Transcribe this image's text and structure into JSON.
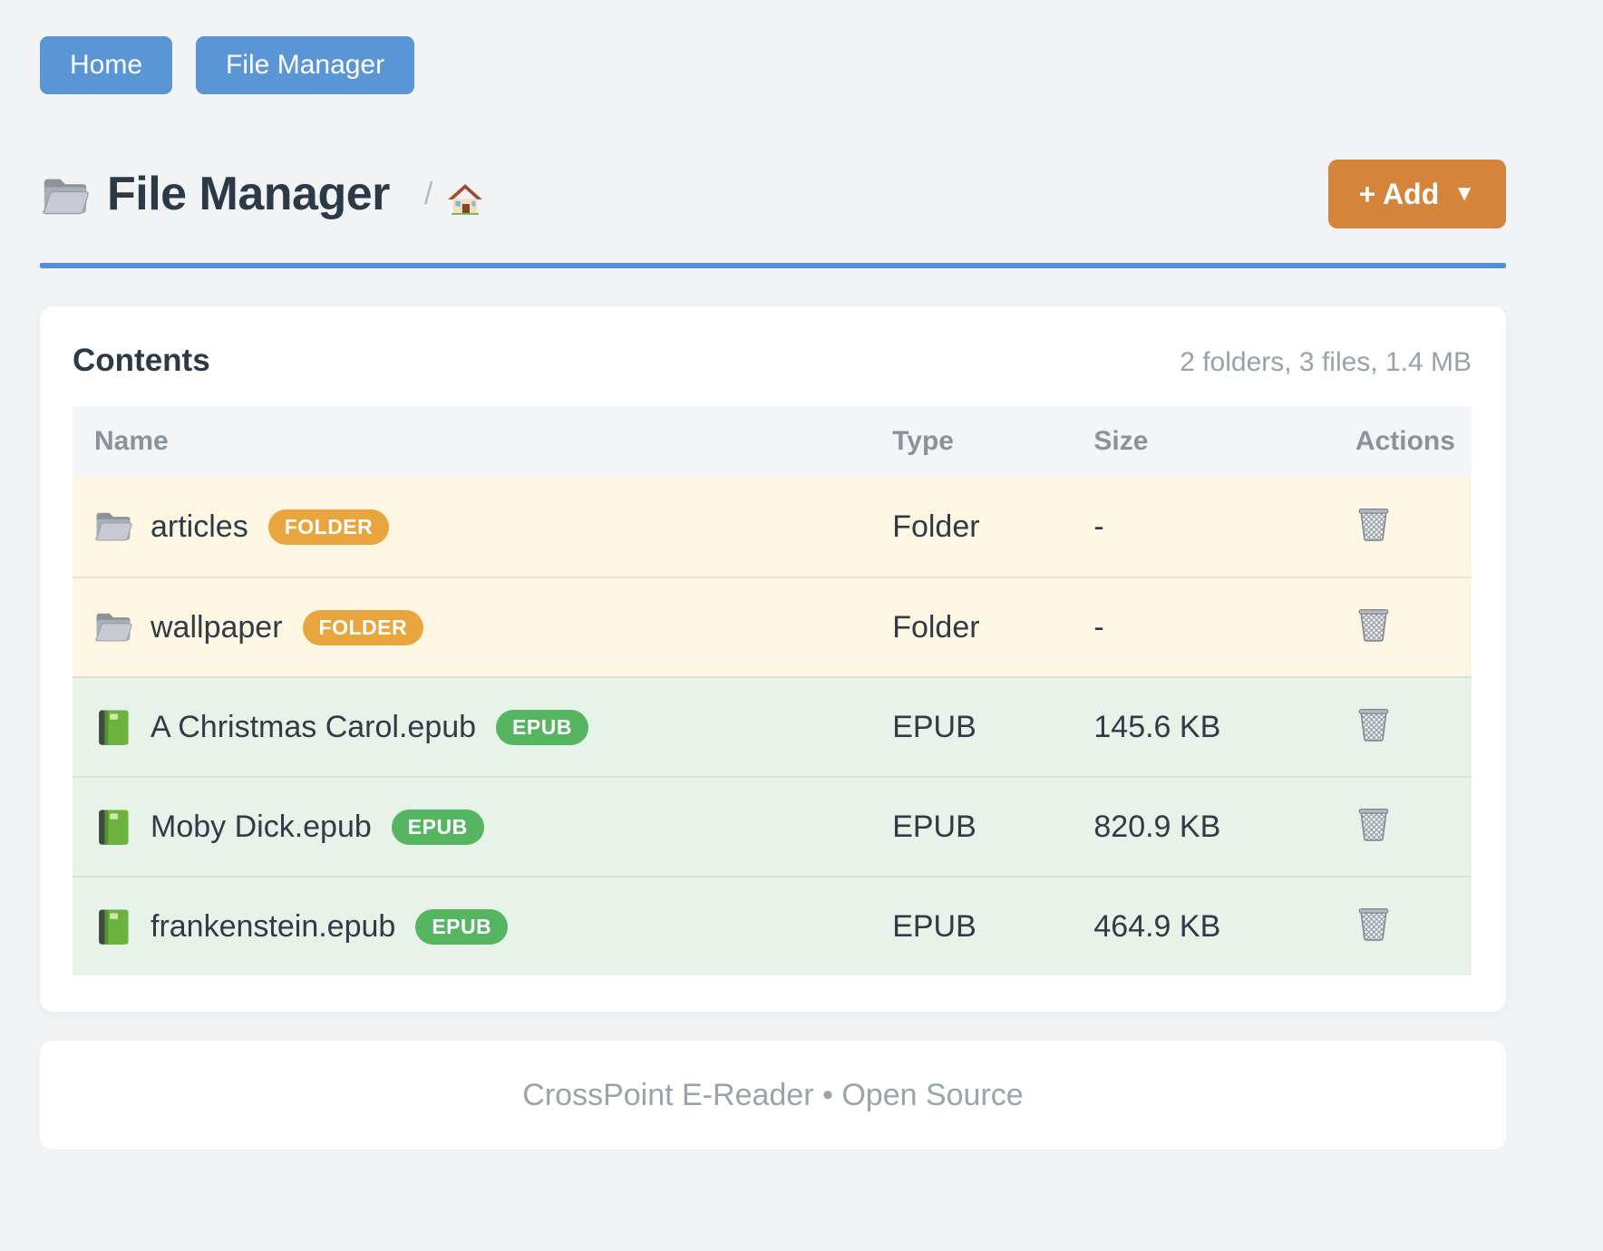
{
  "nav": {
    "buttons": [
      {
        "label": "Home"
      },
      {
        "label": "File Manager"
      }
    ]
  },
  "header": {
    "icon": "folder-icon",
    "title": "File Manager",
    "breadcrumb_separator": "/",
    "breadcrumb_home_icon": "house-icon",
    "add_button": {
      "label": "+ Add",
      "caret": "▼"
    }
  },
  "contents": {
    "heading": "Contents",
    "summary": "2 folders, 3 files, 1.4 MB",
    "columns": [
      "Name",
      "Type",
      "Size",
      "Actions"
    ],
    "action_icon": "wastebasket-icon",
    "rows": [
      {
        "name": "articles",
        "kind": "folder",
        "icon": "folder-icon",
        "badge": "FOLDER",
        "type": "Folder",
        "size": "-"
      },
      {
        "name": "wallpaper",
        "kind": "folder",
        "icon": "folder-icon",
        "badge": "FOLDER",
        "type": "Folder",
        "size": "-"
      },
      {
        "name": "A Christmas Carol.epub",
        "kind": "epub",
        "icon": "book-icon",
        "badge": "EPUB",
        "type": "EPUB",
        "size": "145.6 KB"
      },
      {
        "name": "Moby Dick.epub",
        "kind": "epub",
        "icon": "book-icon",
        "badge": "EPUB",
        "type": "EPUB",
        "size": "820.9 KB"
      },
      {
        "name": "frankenstein.epub",
        "kind": "epub",
        "icon": "book-icon",
        "badge": "EPUB",
        "type": "EPUB",
        "size": "464.9 KB"
      }
    ]
  },
  "footer": {
    "text": "CrossPoint E-Reader • Open Source"
  },
  "colors": {
    "page_background": "#f2f3f4",
    "nav_button_blue": "#5a96d5",
    "title_rule_blue": "#5291d8",
    "add_button_orange": "#d5843c",
    "folder_badge_orange": "#e9a63f",
    "epub_badge_green": "#56b560",
    "folder_row_cream": "#fdf6e3",
    "epub_row_green": "#e7f2e8",
    "heading_slate": "#2c3a47",
    "muted_gray": "#99a2a9"
  }
}
